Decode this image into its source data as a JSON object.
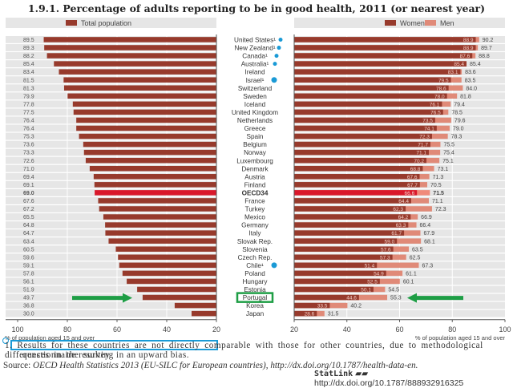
{
  "title": "1.9.1. Percentage of adults reporting to be in good health, 2011 (or nearest year)",
  "chart_data": [
    {
      "type": "bar",
      "orientation": "horizontal",
      "direction": "right-to-left",
      "legend": [
        "Total population"
      ],
      "legend_position": "top",
      "xlabel": "% of population aged 15 and over",
      "xlim": [
        20,
        100
      ],
      "xticks": [
        "100",
        "80",
        "60",
        "40",
        "20"
      ],
      "grid": true,
      "categories": [
        "United States¹",
        "New Zealand¹",
        "Canada¹",
        "Australia¹",
        "Ireland",
        "Israel¹",
        "Switzerland",
        "Sweden",
        "Iceland",
        "United Kingdom",
        "Netherlands",
        "Greece",
        "Spain",
        "Belgium",
        "Norway",
        "Luxembourg",
        "Denmark",
        "Austria",
        "Finland",
        "OECD34",
        "France",
        "Turkey",
        "Mexico",
        "Germany",
        "Italy",
        "Slovak Rep.",
        "Slovenia",
        "Czech Rep.",
        "Chile¹",
        "Poland",
        "Hungary",
        "Estonia",
        "Portugal",
        "Korea",
        "Japan"
      ],
      "values": [
        89.5,
        89.3,
        88.2,
        85.4,
        83.4,
        81.5,
        81.3,
        79.9,
        77.8,
        77.5,
        76.4,
        76.4,
        75.3,
        73.6,
        73.3,
        72.6,
        71.0,
        69.4,
        69.1,
        69.0,
        67.6,
        67.2,
        65.5,
        64.8,
        64.7,
        63.4,
        60.5,
        59.6,
        59.1,
        57.8,
        56.1,
        51.9,
        49.7,
        36.8,
        30.0
      ],
      "highlight": "OECD34"
    },
    {
      "type": "bar",
      "orientation": "horizontal",
      "stacked_overlap": true,
      "legend": [
        "Women",
        "Men"
      ],
      "legend_position": "top",
      "xlabel": "% of population aged 15 and over",
      "xlim": [
        20,
        100
      ],
      "xticks": [
        "20",
        "40",
        "60",
        "80",
        "100"
      ],
      "grid": true,
      "series": [
        {
          "name": "Women",
          "values": [
            88.9,
            88.9,
            87.6,
            85.4,
            83.1,
            79.5,
            78.6,
            78.0,
            76.1,
            76.5,
            73.5,
            74.1,
            72.3,
            71.7,
            71.1,
            70.2,
            68.8,
            67.6,
            67.7,
            66.6,
            64.4,
            62.3,
            64.2,
            63.3,
            61.7,
            59.0,
            57.6,
            57.3,
            51.4,
            54.9,
            52.5,
            50.1,
            44.6,
            33.5,
            28.6
          ]
        },
        {
          "name": "Men",
          "values": [
            90.2,
            89.7,
            88.8,
            85.4,
            83.6,
            83.5,
            84.0,
            81.8,
            79.4,
            78.5,
            79.6,
            79.0,
            78.3,
            75.5,
            75.4,
            75.1,
            73.1,
            71.3,
            70.5,
            71.5,
            71.1,
            72.3,
            66.9,
            66.4,
            67.9,
            68.1,
            63.5,
            62.5,
            67.3,
            61.1,
            60.1,
            54.5,
            55.3,
            40.2,
            31.5
          ]
        }
      ]
    }
  ],
  "colors": {
    "total": "#973a2c",
    "women": "#973a2c",
    "men": "#e08a78",
    "oecd": "#d9182b",
    "panel_bg": "#e6e6e6",
    "annotation_green": "#1e9e45",
    "annotation_blue": "#1a9ad6"
  },
  "annotations": {
    "footnote_marked_countries": [
      "United States¹",
      "New Zealand¹",
      "Canada¹",
      "Australia¹",
      "Israel¹",
      "Chile¹"
    ],
    "highlighted_country": "Portugal"
  },
  "footnote": {
    "line1": "1. Results for these countries are not directly comparable with those for other countries, due to methodological differences in the survey",
    "line2": "questionnaire resulting in an upward bias."
  },
  "source": {
    "label": "Source:",
    "text": "OECD Health Statistics 2013 (EU-SILC for European countries), http://dx.doi.org/10.1787/health-data-en."
  },
  "statlink": {
    "label": "StatLink",
    "url": "http://dx.doi.org/10.1787/888932916325"
  }
}
